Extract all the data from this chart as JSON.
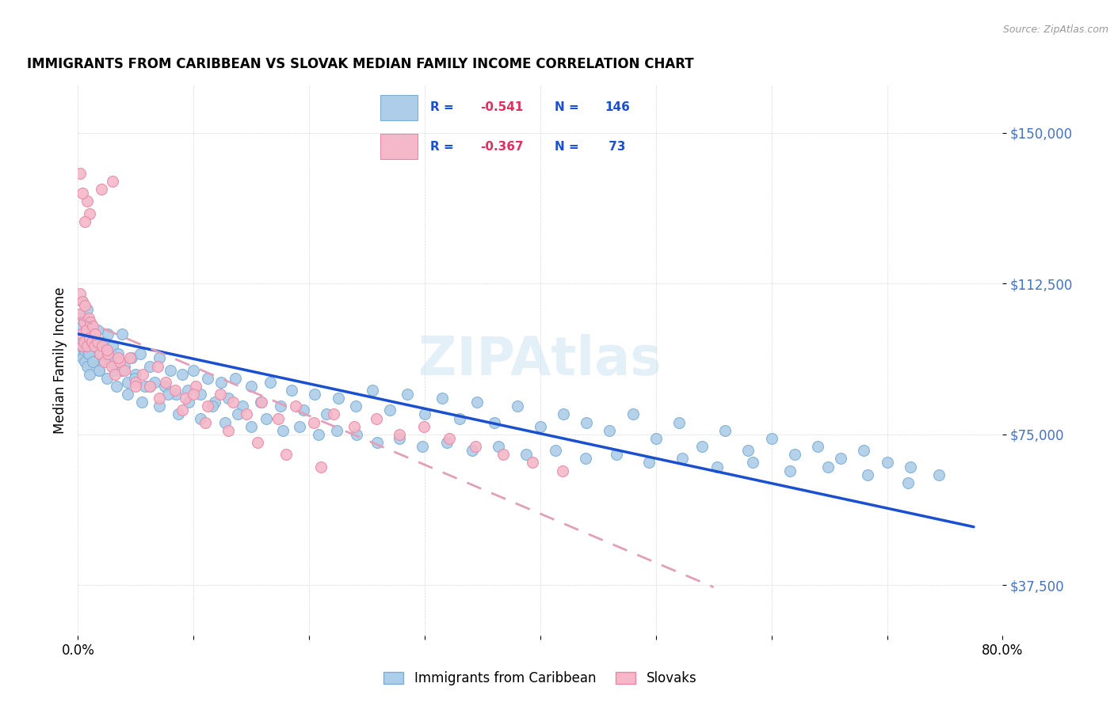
{
  "title": "IMMIGRANTS FROM CARIBBEAN VS SLOVAK MEDIAN FAMILY INCOME CORRELATION CHART",
  "source": "Source: ZipAtlas.com",
  "ylabel": "Median Family Income",
  "y_ticks": [
    37500,
    75000,
    112500,
    150000
  ],
  "y_tick_labels": [
    "$37,500",
    "$75,000",
    "$112,500",
    "$150,000"
  ],
  "xlim": [
    0.0,
    0.8
  ],
  "ylim": [
    25000,
    162000
  ],
  "watermark": "ZIPAtlas",
  "caribbean_color": "#aecde8",
  "slovak_color": "#f5b8c8",
  "caribbean_edge": "#7aaed4",
  "slovak_edge": "#e888a8",
  "trend_caribbean_color": "#1a50d0",
  "trend_slovak_color": "#e0a0b8",
  "caribbean_trend_x": [
    0.0,
    0.775
  ],
  "caribbean_trend_y": [
    100000,
    52000
  ],
  "slovak_trend_x": [
    0.0,
    0.55
  ],
  "slovak_trend_y": [
    104000,
    37000
  ],
  "caribbean_scatter_x": [
    0.001,
    0.002,
    0.002,
    0.003,
    0.003,
    0.004,
    0.004,
    0.005,
    0.005,
    0.006,
    0.006,
    0.007,
    0.007,
    0.008,
    0.008,
    0.009,
    0.009,
    0.01,
    0.01,
    0.011,
    0.012,
    0.013,
    0.014,
    0.015,
    0.016,
    0.017,
    0.018,
    0.019,
    0.02,
    0.022,
    0.024,
    0.026,
    0.028,
    0.03,
    0.032,
    0.035,
    0.038,
    0.04,
    0.043,
    0.046,
    0.05,
    0.054,
    0.058,
    0.062,
    0.066,
    0.07,
    0.075,
    0.08,
    0.085,
    0.09,
    0.095,
    0.1,
    0.106,
    0.112,
    0.118,
    0.124,
    0.13,
    0.136,
    0.142,
    0.15,
    0.158,
    0.166,
    0.175,
    0.185,
    0.195,
    0.205,
    0.215,
    0.225,
    0.24,
    0.255,
    0.27,
    0.285,
    0.3,
    0.315,
    0.33,
    0.345,
    0.36,
    0.38,
    0.4,
    0.42,
    0.44,
    0.46,
    0.48,
    0.5,
    0.52,
    0.54,
    0.56,
    0.58,
    0.6,
    0.62,
    0.64,
    0.66,
    0.68,
    0.7,
    0.72,
    0.745,
    0.003,
    0.005,
    0.007,
    0.009,
    0.011,
    0.013,
    0.015,
    0.018,
    0.021,
    0.025,
    0.029,
    0.033,
    0.038,
    0.043,
    0.049,
    0.055,
    0.062,
    0.07,
    0.078,
    0.087,
    0.096,
    0.106,
    0.116,
    0.127,
    0.138,
    0.15,
    0.163,
    0.177,
    0.192,
    0.208,
    0.224,
    0.241,
    0.259,
    0.278,
    0.298,
    0.319,
    0.341,
    0.364,
    0.388,
    0.413,
    0.439,
    0.466,
    0.494,
    0.523,
    0.553,
    0.584,
    0.616,
    0.649,
    0.683,
    0.718
  ],
  "caribbean_scatter_y": [
    100000,
    105000,
    95000,
    102000,
    98000,
    108000,
    94000,
    100000,
    96000,
    104000,
    93000,
    101000,
    97000,
    106000,
    92000,
    99000,
    95000,
    103000,
    90000,
    98000,
    96000,
    100000,
    93000,
    97000,
    94000,
    101000,
    91000,
    96000,
    93000,
    98000,
    95000,
    100000,
    93000,
    97000,
    91000,
    95000,
    100000,
    92000,
    88000,
    94000,
    90000,
    95000,
    87000,
    92000,
    88000,
    94000,
    87000,
    91000,
    85000,
    90000,
    86000,
    91000,
    85000,
    89000,
    83000,
    88000,
    84000,
    89000,
    82000,
    87000,
    83000,
    88000,
    82000,
    86000,
    81000,
    85000,
    80000,
    84000,
    82000,
    86000,
    81000,
    85000,
    80000,
    84000,
    79000,
    83000,
    78000,
    82000,
    77000,
    80000,
    78000,
    76000,
    80000,
    74000,
    78000,
    72000,
    76000,
    71000,
    74000,
    70000,
    72000,
    69000,
    71000,
    68000,
    67000,
    65000,
    97000,
    103000,
    99000,
    95000,
    101000,
    93000,
    97000,
    91000,
    95000,
    89000,
    93000,
    87000,
    91000,
    85000,
    89000,
    83000,
    87000,
    82000,
    85000,
    80000,
    83000,
    79000,
    82000,
    78000,
    80000,
    77000,
    79000,
    76000,
    77000,
    75000,
    76000,
    75000,
    73000,
    74000,
    72000,
    73000,
    71000,
    72000,
    70000,
    71000,
    69000,
    70000,
    68000,
    69000,
    67000,
    68000,
    66000,
    67000,
    65000,
    63000
  ],
  "slovak_scatter_x": [
    0.001,
    0.002,
    0.003,
    0.004,
    0.004,
    0.005,
    0.005,
    0.006,
    0.007,
    0.008,
    0.009,
    0.01,
    0.011,
    0.012,
    0.013,
    0.014,
    0.015,
    0.017,
    0.019,
    0.021,
    0.023,
    0.026,
    0.029,
    0.032,
    0.036,
    0.04,
    0.045,
    0.05,
    0.056,
    0.062,
    0.069,
    0.076,
    0.084,
    0.093,
    0.102,
    0.112,
    0.123,
    0.134,
    0.146,
    0.159,
    0.173,
    0.188,
    0.204,
    0.221,
    0.239,
    0.258,
    0.278,
    0.299,
    0.321,
    0.344,
    0.368,
    0.393,
    0.419,
    0.1,
    0.03,
    0.02,
    0.01,
    0.008,
    0.006,
    0.004,
    0.002,
    0.015,
    0.025,
    0.035,
    0.05,
    0.07,
    0.09,
    0.11,
    0.13,
    0.155,
    0.18,
    0.21
  ],
  "slovak_scatter_y": [
    105000,
    110000,
    100000,
    108000,
    97000,
    103000,
    98000,
    107000,
    101000,
    97000,
    104000,
    99000,
    103000,
    98000,
    102000,
    97000,
    100000,
    98000,
    95000,
    97000,
    93000,
    95000,
    92000,
    90000,
    93000,
    91000,
    94000,
    88000,
    90000,
    87000,
    92000,
    88000,
    86000,
    84000,
    87000,
    82000,
    85000,
    83000,
    80000,
    83000,
    79000,
    82000,
    78000,
    80000,
    77000,
    79000,
    75000,
    77000,
    74000,
    72000,
    70000,
    68000,
    66000,
    85000,
    138000,
    136000,
    130000,
    133000,
    128000,
    135000,
    140000,
    100000,
    96000,
    94000,
    87000,
    84000,
    81000,
    78000,
    76000,
    73000,
    70000,
    67000
  ]
}
